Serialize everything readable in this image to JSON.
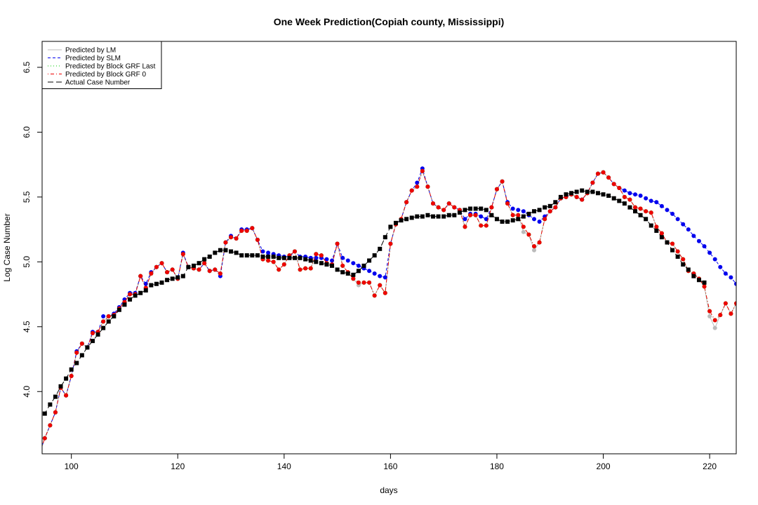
{
  "chart_data": {
    "type": "line",
    "title": "One Week Prediction(Copiah county, Mississippi)",
    "x_label": "days",
    "y_label": "Log Case Number",
    "xlim": [
      94.5,
      225
    ],
    "ylim": [
      3.52,
      6.7
    ],
    "xticks": [
      100,
      120,
      140,
      160,
      180,
      200,
      220
    ],
    "yticks": [
      {
        "value": 4,
        "label": "4.0"
      },
      {
        "value": 4.5,
        "label": "4.5"
      },
      {
        "value": 5,
        "label": "5.0"
      },
      {
        "value": 5.5,
        "label": "5.5"
      },
      {
        "value": 6,
        "label": "6.0"
      },
      {
        "value": 6.5,
        "label": "6.5"
      }
    ],
    "legend_position": "top-left",
    "x": [
      94,
      95,
      96,
      97,
      98,
      99,
      100,
      101,
      102,
      103,
      104,
      105,
      106,
      107,
      108,
      109,
      110,
      111,
      112,
      113,
      114,
      115,
      116,
      117,
      118,
      119,
      120,
      121,
      122,
      123,
      124,
      125,
      126,
      127,
      128,
      129,
      130,
      131,
      132,
      133,
      134,
      135,
      136,
      137,
      138,
      139,
      140,
      141,
      142,
      143,
      144,
      145,
      146,
      147,
      148,
      149,
      150,
      151,
      152,
      153,
      154,
      155,
      156,
      157,
      158,
      159,
      160,
      161,
      162,
      163,
      164,
      165,
      166,
      167,
      168,
      169,
      170,
      171,
      172,
      173,
      174,
      175,
      176,
      177,
      178,
      179,
      180,
      181,
      182,
      183,
      184,
      185,
      186,
      187,
      188,
      189,
      190,
      191,
      192,
      193,
      194,
      195,
      196,
      197,
      198,
      199,
      200,
      201,
      202,
      203,
      204,
      205,
      206,
      207,
      208,
      209,
      210,
      211,
      212,
      213,
      214,
      215,
      216,
      217,
      218,
      219,
      220,
      221,
      222,
      223,
      224,
      225
    ],
    "series": [
      {
        "name": "Predicted by LM",
        "color": "#bbbbbb",
        "line_style": "solid",
        "marker": "circle",
        "values": [
          3.52,
          3.64,
          3.74,
          3.84,
          4.03,
          3.97,
          4.12,
          4.3,
          4.37,
          4.34,
          4.45,
          4.46,
          4.54,
          4.58,
          4.59,
          4.64,
          4.69,
          4.75,
          4.75,
          4.89,
          4.8,
          4.91,
          4.96,
          4.99,
          4.92,
          4.94,
          4.87,
          5.06,
          4.96,
          4.95,
          4.94,
          4.99,
          4.93,
          4.94,
          4.91,
          5.15,
          5.19,
          5.18,
          5.24,
          5.24,
          5.26,
          5.17,
          5.02,
          5.01,
          5.0,
          4.94,
          4.98,
          5.05,
          5.08,
          4.94,
          4.95,
          4.95,
          5.06,
          5.05,
          4.99,
          4.98,
          5.14,
          4.97,
          4.92,
          4.87,
          4.82,
          4.84,
          4.84,
          4.74,
          4.82,
          4.76,
          5.14,
          5.29,
          5.33,
          5.46,
          5.55,
          5.58,
          5.7,
          5.58,
          5.45,
          5.42,
          5.4,
          5.45,
          5.42,
          5.4,
          5.27,
          5.36,
          5.36,
          5.28,
          5.28,
          5.42,
          5.56,
          5.62,
          5.45,
          5.36,
          5.36,
          5.23,
          5.21,
          5.09,
          5.15,
          5.33,
          5.39,
          5.42,
          5.49,
          5.5,
          5.52,
          5.5,
          5.48,
          5.53,
          5.61,
          5.68,
          5.69,
          5.65,
          5.6,
          5.57,
          5.5,
          5.48,
          5.42,
          5.41,
          5.39,
          5.38,
          5.27,
          5.22,
          5.15,
          5.14,
          5.08,
          5.02,
          4.93,
          4.91,
          4.87,
          4.81,
          4.58,
          4.49,
          4.59,
          4.68,
          4.6,
          4.68
        ]
      },
      {
        "name": "Predicted by SLM",
        "color": "#0000ee",
        "line_style": "dashed",
        "marker": "circle",
        "values": [
          3.52,
          3.64,
          3.74,
          3.84,
          4.03,
          3.97,
          4.12,
          4.31,
          4.37,
          4.34,
          4.46,
          4.46,
          4.58,
          4.58,
          4.6,
          4.65,
          4.71,
          4.76,
          4.76,
          4.89,
          4.83,
          4.92,
          4.96,
          4.99,
          4.92,
          4.94,
          4.87,
          5.07,
          4.96,
          4.95,
          4.94,
          4.99,
          4.93,
          4.94,
          4.89,
          5.15,
          5.2,
          5.18,
          5.25,
          5.25,
          5.26,
          5.17,
          5.08,
          5.07,
          5.06,
          5.05,
          5.04,
          5.04,
          5.08,
          5.04,
          5.04,
          5.03,
          5.03,
          5.03,
          5.02,
          5.01,
          5.14,
          5.03,
          5.01,
          4.99,
          4.97,
          4.95,
          4.93,
          4.91,
          4.89,
          4.88,
          5.14,
          5.29,
          5.33,
          5.46,
          5.55,
          5.61,
          5.72,
          5.58,
          5.45,
          5.42,
          5.4,
          5.45,
          5.42,
          5.4,
          5.33,
          5.37,
          5.37,
          5.35,
          5.33,
          5.42,
          5.56,
          5.62,
          5.46,
          5.41,
          5.4,
          5.39,
          5.36,
          5.33,
          5.31,
          5.35,
          5.39,
          5.42,
          5.49,
          5.5,
          5.52,
          5.5,
          5.48,
          5.53,
          5.61,
          5.68,
          5.69,
          5.65,
          5.6,
          5.57,
          5.55,
          5.53,
          5.52,
          5.51,
          5.49,
          5.47,
          5.46,
          5.43,
          5.4,
          5.37,
          5.33,
          5.29,
          5.25,
          5.2,
          5.16,
          5.12,
          5.07,
          5.02,
          4.96,
          4.91,
          4.88,
          4.83
        ]
      },
      {
        "name": "Predicted by Block GRF Last",
        "color": "#00cc00",
        "line_style": "dotted",
        "marker": "circle",
        "values": [
          3.52,
          3.64,
          3.74,
          3.84,
          4.03,
          3.97,
          4.12,
          4.3,
          4.37,
          4.34,
          4.45,
          4.46,
          4.54,
          4.58,
          4.59,
          4.64,
          4.69,
          4.75,
          4.75,
          4.89,
          4.8,
          4.91,
          4.96,
          4.99,
          4.92,
          4.94,
          4.87,
          5.06,
          4.96,
          4.95,
          4.94,
          4.99,
          4.93,
          4.94,
          4.91,
          5.15,
          5.19,
          5.18,
          5.24,
          5.24,
          5.26,
          5.17,
          5.02,
          5.01,
          5.0,
          4.94,
          4.98,
          5.05,
          5.08,
          4.94,
          4.95,
          4.95,
          5.06,
          5.05,
          4.99,
          4.98,
          5.14,
          4.97,
          4.92,
          4.87,
          4.84,
          4.84,
          4.84,
          4.74,
          4.82,
          4.76,
          5.14,
          5.29,
          5.33,
          5.46,
          5.55,
          5.58,
          5.7,
          5.58,
          5.45,
          5.42,
          5.4,
          5.45,
          5.42,
          5.4,
          5.27,
          5.36,
          5.36,
          5.28,
          5.28,
          5.42,
          5.56,
          5.62,
          5.45,
          5.36,
          5.36,
          5.27,
          5.21,
          5.12,
          5.15,
          5.33,
          5.39,
          5.42,
          5.49,
          5.5,
          5.52,
          5.5,
          5.48,
          5.53,
          5.61,
          5.68,
          5.69,
          5.65,
          5.6,
          5.57,
          5.5,
          5.48,
          5.42,
          5.41,
          5.39,
          5.38,
          5.27,
          5.22,
          5.15,
          5.14,
          5.08,
          5.02,
          4.93,
          4.91,
          4.87,
          4.81,
          4.62,
          4.55,
          4.59,
          4.68,
          4.6,
          4.68
        ]
      },
      {
        "name": "Predicted by Block GRF 0",
        "color": "#ee0000",
        "line_style": "dotdash",
        "marker": "circle",
        "values": [
          3.52,
          3.64,
          3.74,
          3.84,
          4.03,
          3.97,
          4.12,
          4.3,
          4.37,
          4.34,
          4.45,
          4.46,
          4.54,
          4.58,
          4.59,
          4.64,
          4.69,
          4.75,
          4.75,
          4.89,
          4.8,
          4.91,
          4.96,
          4.99,
          4.92,
          4.94,
          4.87,
          5.06,
          4.96,
          4.95,
          4.94,
          4.99,
          4.93,
          4.94,
          4.91,
          5.15,
          5.19,
          5.18,
          5.24,
          5.24,
          5.26,
          5.17,
          5.02,
          5.01,
          5.0,
          4.94,
          4.98,
          5.05,
          5.08,
          4.94,
          4.95,
          4.95,
          5.06,
          5.05,
          4.99,
          4.98,
          5.14,
          4.97,
          4.92,
          4.87,
          4.84,
          4.84,
          4.84,
          4.74,
          4.82,
          4.76,
          5.14,
          5.29,
          5.33,
          5.46,
          5.55,
          5.58,
          5.7,
          5.58,
          5.45,
          5.42,
          5.4,
          5.45,
          5.42,
          5.4,
          5.27,
          5.36,
          5.36,
          5.28,
          5.28,
          5.42,
          5.56,
          5.62,
          5.45,
          5.36,
          5.36,
          5.27,
          5.21,
          5.12,
          5.15,
          5.33,
          5.39,
          5.42,
          5.49,
          5.5,
          5.52,
          5.5,
          5.48,
          5.53,
          5.61,
          5.68,
          5.69,
          5.65,
          5.6,
          5.57,
          5.5,
          5.48,
          5.42,
          5.41,
          5.39,
          5.38,
          5.27,
          5.22,
          5.15,
          5.14,
          5.08,
          5.02,
          4.93,
          4.91,
          4.87,
          4.81,
          4.62,
          4.55,
          4.59,
          4.68,
          4.6,
          4.68
        ]
      },
      {
        "name": "Actual Case Number",
        "color": "#000000",
        "line_style": "longdash",
        "marker": "square",
        "values": [
          3.76,
          3.83,
          3.9,
          3.96,
          4.04,
          4.1,
          4.17,
          4.22,
          4.28,
          4.34,
          4.39,
          4.44,
          4.49,
          4.54,
          4.58,
          4.63,
          4.67,
          4.71,
          4.74,
          4.76,
          4.78,
          4.82,
          4.83,
          4.84,
          4.86,
          4.87,
          4.88,
          4.89,
          4.96,
          4.97,
          4.99,
          5.02,
          5.04,
          5.07,
          5.09,
          5.09,
          5.08,
          5.07,
          5.05,
          5.05,
          5.05,
          5.05,
          5.04,
          5.04,
          5.04,
          5.03,
          5.03,
          5.03,
          5.03,
          5.03,
          5.02,
          5.01,
          5.0,
          4.99,
          4.98,
          4.97,
          4.94,
          4.92,
          4.91,
          4.9,
          4.93,
          4.97,
          5.01,
          5.05,
          5.1,
          5.19,
          5.27,
          5.3,
          5.32,
          5.33,
          5.34,
          5.35,
          5.35,
          5.36,
          5.35,
          5.35,
          5.35,
          5.36,
          5.36,
          5.38,
          5.4,
          5.41,
          5.41,
          5.41,
          5.4,
          5.36,
          5.33,
          5.31,
          5.31,
          5.32,
          5.33,
          5.35,
          5.37,
          5.39,
          5.4,
          5.42,
          5.43,
          5.46,
          5.5,
          5.52,
          5.53,
          5.54,
          5.55,
          5.54,
          5.54,
          5.53,
          5.52,
          5.51,
          5.49,
          5.47,
          5.45,
          5.42,
          5.39,
          5.36,
          5.33,
          5.28,
          5.24,
          5.19,
          5.15,
          5.09,
          5.04,
          4.98,
          4.94,
          4.89,
          4.86,
          4.84,
          null,
          null,
          null,
          null,
          null,
          null
        ]
      }
    ]
  }
}
